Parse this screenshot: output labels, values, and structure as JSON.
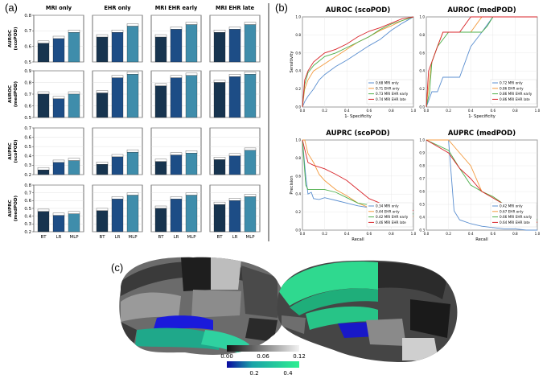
{
  "figure": {
    "panel_labels": [
      "(a)",
      "(b)",
      "(c)"
    ]
  },
  "colors": {
    "bt": "#17344f",
    "lr": "#1d4d86",
    "mlp": "#3f8dab",
    "frame": "#333333",
    "grid": "#d9d9d9"
  },
  "panel_a": {
    "columns": [
      "MRI only",
      "EHR only",
      "MRI EHR early",
      "MRI EHR late"
    ],
    "rows": [
      {
        "label1": "AUROC",
        "label2": "(scoPOD)",
        "ylim": [
          0.5,
          0.8
        ],
        "ticks": [
          "0.5",
          "0.6",
          "0.7",
          "0.8"
        ]
      },
      {
        "label1": "AUROC",
        "label2": "(medPOD)",
        "ylim": [
          0.5,
          0.9
        ],
        "ticks": [
          "0.5",
          "0.6",
          "0.7",
          "0.8",
          "0.9"
        ]
      },
      {
        "label1": "AUPRC",
        "label2": "(scoPOD)",
        "ylim": [
          0.2,
          0.7
        ],
        "ticks": [
          "0.2",
          "0.3",
          "0.4",
          "0.5",
          "0.6",
          "0.7"
        ]
      },
      {
        "label1": "AUPRC",
        "label2": "(medPOD)",
        "ylim": [
          0.2,
          0.8
        ],
        "ticks": [
          "0.2",
          "0.3",
          "0.4",
          "0.5",
          "0.6",
          "0.7",
          "0.8"
        ]
      }
    ],
    "xticks": [
      "BT",
      "LR",
      "MLP"
    ]
  },
  "panel_b": {
    "titles": [
      "AUROC (scoPOD)",
      "AUROC (medPOD)",
      "AUPRC (scoPOD)",
      "AUPRC (medPOD)"
    ],
    "ylabels": [
      "Sensitivity",
      "",
      "Precision",
      ""
    ],
    "xlabels": [
      "1- Specificity",
      "1- Specificity",
      "Recall",
      "Recall"
    ],
    "ticks": [
      "0.0",
      "0.2",
      "0.4",
      "0.6",
      "0.8",
      "1.0"
    ],
    "legends": [
      [
        "0.68 MRI only",
        "0.71 EHR only",
        "0.73 MRI EHR early",
        "0.74 MRI EHR late"
      ],
      [
        "0.72 MRI only",
        "0.86 EHR only",
        "0.86 MRI EHR early",
        "0.86 MRI EHR late"
      ],
      [
        "0.34 MRI only",
        "0.44 EHR only",
        "0.42 MRI EHR early",
        "0.46 MRI EHR late"
      ],
      [
        "0.42 MRI only",
        "0.67 EHR only",
        "0.66 MRI EHR early",
        "0.64 MRI EHR late"
      ]
    ],
    "series_colors": [
      "#5b8fd0",
      "#f39a3e",
      "#4daf4a",
      "#d9262b"
    ]
  },
  "panel_c": {
    "colorbar_gray": {
      "ticks": [
        "0.00",
        "0.06",
        "0.12"
      ]
    },
    "colorbar_color": {
      "ticks": [
        "0.2",
        "0.4"
      ]
    }
  },
  "chart_data": [
    {
      "type": "bar",
      "title": "MRI only — AUROC (scoPOD)",
      "categories": [
        "BT",
        "LR",
        "MLP"
      ],
      "values": [
        0.62,
        0.65,
        0.69
      ],
      "ylabel": "AUROC (scoPOD)",
      "ylim": [
        0.5,
        0.8
      ]
    },
    {
      "type": "bar",
      "title": "EHR only — AUROC (scoPOD)",
      "categories": [
        "BT",
        "LR",
        "MLP"
      ],
      "values": [
        0.66,
        0.69,
        0.73
      ],
      "ylim": [
        0.5,
        0.8
      ]
    },
    {
      "type": "bar",
      "title": "MRI EHR early — AUROC (scoPOD)",
      "categories": [
        "BT",
        "LR",
        "MLP"
      ],
      "values": [
        0.66,
        0.71,
        0.74
      ],
      "ylim": [
        0.5,
        0.8
      ]
    },
    {
      "type": "bar",
      "title": "MRI EHR late — AUROC (scoPOD)",
      "categories": [
        "BT",
        "LR",
        "MLP"
      ],
      "values": [
        0.69,
        0.71,
        0.74
      ],
      "ylim": [
        0.5,
        0.8
      ]
    },
    {
      "type": "bar",
      "title": "MRI only — AUROC (medPOD)",
      "categories": [
        "BT",
        "LR",
        "MLP"
      ],
      "values": [
        0.7,
        0.66,
        0.7
      ],
      "ylim": [
        0.5,
        0.9
      ]
    },
    {
      "type": "bar",
      "title": "EHR only — AUROC (medPOD)",
      "categories": [
        "BT",
        "LR",
        "MLP"
      ],
      "values": [
        0.71,
        0.84,
        0.87
      ],
      "ylim": [
        0.5,
        0.9
      ]
    },
    {
      "type": "bar",
      "title": "MRI EHR early — AUROC (medPOD)",
      "categories": [
        "BT",
        "LR",
        "MLP"
      ],
      "values": [
        0.77,
        0.84,
        0.86
      ],
      "ylim": [
        0.5,
        0.9
      ]
    },
    {
      "type": "bar",
      "title": "MRI EHR late — AUROC (medPOD)",
      "categories": [
        "BT",
        "LR",
        "MLP"
      ],
      "values": [
        0.8,
        0.85,
        0.87
      ],
      "ylim": [
        0.5,
        0.9
      ]
    },
    {
      "type": "bar",
      "title": "MRI only — AUPRC (scoPOD)",
      "categories": [
        "BT",
        "LR",
        "MLP"
      ],
      "values": [
        0.25,
        0.33,
        0.35
      ],
      "ylim": [
        0.2,
        0.7
      ]
    },
    {
      "type": "bar",
      "title": "EHR only — AUPRC (scoPOD)",
      "categories": [
        "BT",
        "LR",
        "MLP"
      ],
      "values": [
        0.31,
        0.39,
        0.44
      ],
      "ylim": [
        0.2,
        0.7
      ]
    },
    {
      "type": "bar",
      "title": "MRI EHR early — AUPRC (scoPOD)",
      "categories": [
        "BT",
        "LR",
        "MLP"
      ],
      "values": [
        0.34,
        0.41,
        0.43
      ],
      "ylim": [
        0.2,
        0.7
      ]
    },
    {
      "type": "bar",
      "title": "MRI EHR late — AUPRC (scoPOD)",
      "categories": [
        "BT",
        "LR",
        "MLP"
      ],
      "values": [
        0.36,
        0.4,
        0.46
      ],
      "ylim": [
        0.2,
        0.7
      ]
    },
    {
      "type": "bar",
      "title": "MRI only — AUPRC (medPOD)",
      "categories": [
        "BT",
        "LR",
        "MLP"
      ],
      "values": [
        0.46,
        0.41,
        0.43
      ],
      "ylim": [
        0.2,
        0.8
      ]
    },
    {
      "type": "bar",
      "title": "EHR only — AUPRC (medPOD)",
      "categories": [
        "BT",
        "LR",
        "MLP"
      ],
      "values": [
        0.47,
        0.62,
        0.67
      ],
      "ylim": [
        0.2,
        0.8
      ]
    },
    {
      "type": "bar",
      "title": "MRI EHR early — AUPRC (medPOD)",
      "categories": [
        "BT",
        "LR",
        "MLP"
      ],
      "values": [
        0.5,
        0.62,
        0.67
      ],
      "ylim": [
        0.2,
        0.8
      ]
    },
    {
      "type": "bar",
      "title": "MRI EHR late — AUPRC (medPOD)",
      "categories": [
        "BT",
        "LR",
        "MLP"
      ],
      "values": [
        0.55,
        0.6,
        0.65
      ],
      "ylim": [
        0.2,
        0.8
      ]
    },
    {
      "type": "line",
      "title": "AUROC (scoPOD)",
      "xlabel": "1- Specificity",
      "ylabel": "Sensitivity",
      "xlim": [
        0,
        1
      ],
      "ylim": [
        0,
        1
      ],
      "series": [
        {
          "name": "0.68 MRI only",
          "x": [
            0,
            0.02,
            0.05,
            0.1,
            0.15,
            0.2,
            0.3,
            0.4,
            0.5,
            0.6,
            0.7,
            0.8,
            0.9,
            1.0
          ],
          "y": [
            0,
            0.06,
            0.12,
            0.2,
            0.3,
            0.36,
            0.45,
            0.52,
            0.6,
            0.68,
            0.75,
            0.85,
            0.93,
            1.0
          ]
        },
        {
          "name": "0.71 EHR only",
          "x": [
            0,
            0.02,
            0.05,
            0.1,
            0.2,
            0.3,
            0.4,
            0.5,
            0.6,
            0.7,
            0.8,
            0.9,
            1.0
          ],
          "y": [
            0,
            0.2,
            0.3,
            0.4,
            0.48,
            0.56,
            0.64,
            0.72,
            0.78,
            0.85,
            0.9,
            0.96,
            1.0
          ]
        },
        {
          "name": "0.73 MRI EHR early",
          "x": [
            0,
            0.02,
            0.05,
            0.1,
            0.2,
            0.3,
            0.4,
            0.5,
            0.6,
            0.7,
            0.8,
            0.9,
            1.0
          ],
          "y": [
            0,
            0.25,
            0.38,
            0.46,
            0.56,
            0.6,
            0.66,
            0.72,
            0.78,
            0.86,
            0.92,
            0.96,
            1.0
          ]
        },
        {
          "name": "0.74 MRI EHR late",
          "x": [
            0,
            0.02,
            0.05,
            0.1,
            0.15,
            0.2,
            0.3,
            0.4,
            0.5,
            0.6,
            0.7,
            0.8,
            0.9,
            1.0
          ],
          "y": [
            0,
            0.3,
            0.4,
            0.5,
            0.55,
            0.6,
            0.64,
            0.7,
            0.78,
            0.84,
            0.88,
            0.93,
            0.98,
            1.0
          ]
        }
      ]
    },
    {
      "type": "line",
      "title": "AUROC (medPOD)",
      "xlabel": "1- Specificity",
      "xlim": [
        0,
        1
      ],
      "ylim": [
        0,
        1
      ],
      "series": [
        {
          "name": "0.72 MRI only",
          "x": [
            0,
            0.05,
            0.1,
            0.15,
            0.2,
            0.3,
            0.4,
            0.5,
            0.6,
            0.7,
            0.8,
            1.0
          ],
          "y": [
            0,
            0.17,
            0.17,
            0.33,
            0.33,
            0.33,
            0.67,
            0.83,
            1.0,
            1.0,
            1.0,
            1.0
          ]
        },
        {
          "name": "0.86 EHR only",
          "x": [
            0,
            0.03,
            0.05,
            0.1,
            0.15,
            0.2,
            0.3,
            0.4,
            0.5,
            0.6,
            0.7,
            1.0
          ],
          "y": [
            0,
            0.33,
            0.5,
            0.67,
            0.83,
            0.83,
            0.83,
            0.83,
            1.0,
            1.0,
            1.0,
            1.0
          ]
        },
        {
          "name": "0.86 MRI EHR early",
          "x": [
            0,
            0.03,
            0.05,
            0.1,
            0.2,
            0.3,
            0.4,
            0.5,
            0.55,
            0.6,
            0.7,
            1.0
          ],
          "y": [
            0,
            0.17,
            0.5,
            0.67,
            0.83,
            0.83,
            0.83,
            0.83,
            0.9,
            1.0,
            1.0,
            1.0
          ]
        },
        {
          "name": "0.86 MRI EHR late",
          "x": [
            0,
            0.02,
            0.05,
            0.1,
            0.15,
            0.2,
            0.3,
            0.4,
            0.5,
            0.6,
            0.7,
            1.0
          ],
          "y": [
            0,
            0.4,
            0.5,
            0.67,
            0.83,
            0.83,
            0.83,
            1.0,
            1.0,
            1.0,
            1.0,
            1.0
          ]
        }
      ]
    },
    {
      "type": "line",
      "title": "AUPRC (scoPOD)",
      "xlabel": "Recall",
      "ylabel": "Precision",
      "xlim": [
        0,
        1
      ],
      "ylim": [
        0,
        1
      ],
      "series": [
        {
          "name": "0.34 MRI only",
          "x": [
            0,
            0.03,
            0.05,
            0.08,
            0.1,
            0.15,
            0.2,
            0.3,
            0.4,
            0.5,
            0.6,
            0.7,
            0.8,
            0.9,
            1.0
          ],
          "y": [
            1.0,
            0.6,
            0.4,
            0.42,
            0.35,
            0.34,
            0.36,
            0.33,
            0.3,
            0.27,
            0.25,
            0.23,
            0.22,
            0.2,
            0.18
          ]
        },
        {
          "name": "0.44 EHR only",
          "x": [
            0,
            0.02,
            0.05,
            0.1,
            0.15,
            0.2,
            0.3,
            0.4,
            0.5,
            0.6,
            0.7,
            0.8,
            0.9,
            1.0
          ],
          "y": [
            1.0,
            1.0,
            0.85,
            0.75,
            0.62,
            0.55,
            0.45,
            0.38,
            0.3,
            0.25,
            0.22,
            0.18,
            0.17,
            0.15
          ]
        },
        {
          "name": "0.42 MRI EHR early",
          "x": [
            0,
            0.03,
            0.05,
            0.1,
            0.2,
            0.3,
            0.4,
            0.5,
            0.6,
            0.7,
            0.8,
            0.9,
            1.0
          ],
          "y": [
            1.0,
            0.5,
            0.45,
            0.45,
            0.45,
            0.42,
            0.36,
            0.3,
            0.28,
            0.25,
            0.22,
            0.2,
            0.18
          ]
        },
        {
          "name": "0.46 MRI EHR late",
          "x": [
            0,
            0.05,
            0.1,
            0.15,
            0.2,
            0.3,
            0.4,
            0.5,
            0.6,
            0.7,
            0.8,
            0.9,
            1.0
          ],
          "y": [
            1.0,
            0.75,
            0.72,
            0.7,
            0.68,
            0.62,
            0.55,
            0.45,
            0.35,
            0.3,
            0.25,
            0.24,
            0.22
          ]
        }
      ]
    },
    {
      "type": "line",
      "title": "AUPRC (medPOD)",
      "xlabel": "Recall",
      "xlim": [
        0,
        1
      ],
      "ylim": [
        0.3,
        1.0
      ],
      "series": [
        {
          "name": "0.42 MRI only",
          "x": [
            0,
            0.1,
            0.2,
            0.25,
            0.3,
            0.4,
            0.5,
            0.6,
            0.7,
            0.8,
            0.9,
            1.0
          ],
          "y": [
            1.0,
            1.0,
            1.0,
            0.45,
            0.38,
            0.35,
            0.33,
            0.32,
            0.31,
            0.31,
            0.3,
            0.3
          ]
        },
        {
          "name": "0.67 EHR only",
          "x": [
            0,
            0.1,
            0.2,
            0.3,
            0.4,
            0.5,
            0.6,
            0.7,
            0.8,
            0.9,
            1.0
          ],
          "y": [
            1.0,
            1.0,
            1.0,
            0.9,
            0.8,
            0.6,
            0.56,
            0.5,
            0.42,
            0.38,
            0.36
          ]
        },
        {
          "name": "0.66 MRI EHR early",
          "x": [
            0,
            0.2,
            0.3,
            0.4,
            0.5,
            0.6,
            0.7,
            0.8,
            0.9,
            1.0
          ],
          "y": [
            1.0,
            0.92,
            0.78,
            0.65,
            0.6,
            0.56,
            0.5,
            0.45,
            0.4,
            0.38
          ]
        },
        {
          "name": "0.64 MRI EHR late",
          "x": [
            0,
            0.2,
            0.3,
            0.4,
            0.5,
            0.6,
            0.7,
            0.8,
            0.9,
            1.0
          ],
          "y": [
            1.0,
            0.9,
            0.78,
            0.7,
            0.6,
            0.55,
            0.5,
            0.44,
            0.4,
            0.36
          ]
        }
      ]
    }
  ]
}
